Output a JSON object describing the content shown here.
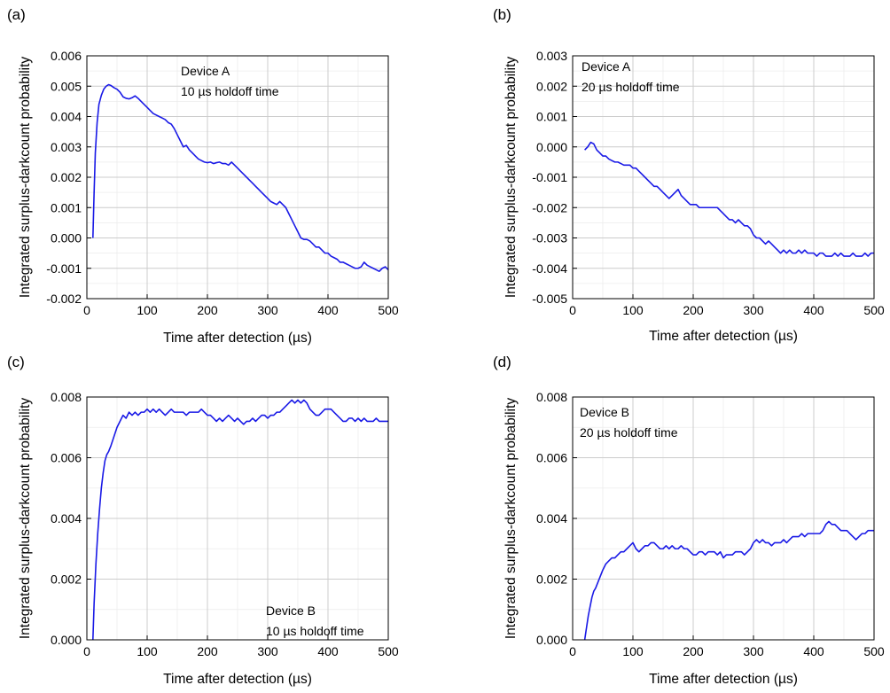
{
  "chart_data": [
    {
      "type": "line",
      "panel": "(a)",
      "xlabel": "Time after detection (µs)",
      "ylabel": "Integrated surplus-darkcount probability",
      "xlim": [
        0,
        500
      ],
      "ylim": [
        -0.002,
        0.006
      ],
      "x_ticks": [
        0,
        100,
        200,
        300,
        400,
        500
      ],
      "x_tick_labels": [
        "0",
        "100",
        "200",
        "300",
        "400",
        "500"
      ],
      "y_ticks": [
        -0.002,
        -0.001,
        0.0,
        0.001,
        0.002,
        0.003,
        0.004,
        0.005,
        0.006
      ],
      "y_tick_labels": [
        "-0.002",
        "-0.001",
        "0.000",
        "0.001",
        "0.002",
        "0.003",
        "0.004",
        "0.005",
        "0.006"
      ],
      "grid": true,
      "annotation_lines": [
        "Device A",
        "10 µs holdoff time"
      ],
      "annotation_pos": "top-center",
      "color": "#1a1ae6",
      "series": [
        {
          "x": [
            10,
            12,
            14,
            17,
            20,
            24,
            28,
            32,
            36,
            40,
            45,
            50,
            55,
            60,
            65,
            70,
            75,
            80,
            85,
            90,
            95,
            100,
            105,
            110,
            115,
            120,
            125,
            130,
            135,
            140,
            145,
            150,
            155,
            160,
            165,
            170,
            175,
            180,
            185,
            190,
            195,
            200,
            205,
            210,
            215,
            220,
            225,
            230,
            235,
            240,
            245,
            250,
            255,
            260,
            265,
            270,
            275,
            280,
            285,
            290,
            295,
            300,
            305,
            310,
            315,
            320,
            325,
            330,
            335,
            340,
            345,
            350,
            355,
            360,
            365,
            370,
            375,
            380,
            385,
            390,
            395,
            400,
            405,
            410,
            415,
            420,
            425,
            430,
            435,
            440,
            445,
            450,
            455,
            460,
            465,
            470,
            475,
            480,
            485,
            490,
            495,
            500
          ],
          "y": [
            0.0,
            0.0015,
            0.0028,
            0.0038,
            0.0044,
            0.0047,
            0.0049,
            0.005,
            0.00505,
            0.00502,
            0.00495,
            0.0049,
            0.0048,
            0.00465,
            0.0046,
            0.00458,
            0.00462,
            0.00468,
            0.0046,
            0.0045,
            0.0044,
            0.0043,
            0.0042,
            0.0041,
            0.00405,
            0.004,
            0.00395,
            0.0039,
            0.0038,
            0.00375,
            0.0036,
            0.0034,
            0.0032,
            0.003,
            0.00305,
            0.0029,
            0.0028,
            0.0027,
            0.0026,
            0.00255,
            0.0025,
            0.00248,
            0.0025,
            0.00245,
            0.00248,
            0.0025,
            0.00245,
            0.00245,
            0.0024,
            0.0025,
            0.0024,
            0.0023,
            0.0022,
            0.0021,
            0.002,
            0.0019,
            0.0018,
            0.0017,
            0.0016,
            0.0015,
            0.0014,
            0.0013,
            0.0012,
            0.00115,
            0.0011,
            0.0012,
            0.0011,
            0.001,
            0.0008,
            0.0006,
            0.0004,
            0.0002,
            0.0,
            -5e-05,
            -5e-05,
            -0.0001,
            -0.0002,
            -0.0003,
            -0.0003,
            -0.0004,
            -0.0005,
            -0.0005,
            -0.0006,
            -0.00065,
            -0.0007,
            -0.0008,
            -0.0008,
            -0.00085,
            -0.0009,
            -0.00095,
            -0.001,
            -0.001,
            -0.00095,
            -0.0008,
            -0.0009,
            -0.00095,
            -0.001,
            -0.00105,
            -0.0011,
            -0.001,
            -0.00095,
            -0.00105
          ]
        }
      ]
    },
    {
      "type": "line",
      "panel": "(b)",
      "xlabel": "Time after detection (µs)",
      "ylabel": "Integrated surplus-darkcount probability",
      "xlim": [
        0,
        500
      ],
      "ylim": [
        -0.005,
        0.003
      ],
      "x_ticks": [
        0,
        100,
        200,
        300,
        400,
        500
      ],
      "x_tick_labels": [
        "0",
        "100",
        "200",
        "300",
        "400",
        "500"
      ],
      "y_ticks": [
        -0.005,
        -0.004,
        -0.003,
        -0.002,
        -0.001,
        0.0,
        0.001,
        0.002,
        0.003
      ],
      "y_tick_labels": [
        "-0.005",
        "-0.004",
        "-0.003",
        "-0.002",
        "-0.001",
        "0.000",
        "0.001",
        "0.002",
        "0.003"
      ],
      "grid": true,
      "annotation_lines": [
        "Device A",
        "20 µs holdoff time"
      ],
      "annotation_pos": "top-left",
      "color": "#1a1ae6",
      "series": [
        {
          "x": [
            20,
            25,
            30,
            35,
            40,
            45,
            50,
            55,
            60,
            65,
            70,
            75,
            80,
            85,
            90,
            95,
            100,
            105,
            110,
            115,
            120,
            125,
            130,
            135,
            140,
            145,
            150,
            155,
            160,
            165,
            170,
            175,
            180,
            185,
            190,
            195,
            200,
            205,
            210,
            215,
            220,
            225,
            230,
            235,
            240,
            245,
            250,
            255,
            260,
            265,
            270,
            275,
            280,
            285,
            290,
            295,
            300,
            305,
            310,
            315,
            320,
            325,
            330,
            335,
            340,
            345,
            350,
            355,
            360,
            365,
            370,
            375,
            380,
            385,
            390,
            395,
            400,
            405,
            410,
            415,
            420,
            425,
            430,
            435,
            440,
            445,
            450,
            455,
            460,
            465,
            470,
            475,
            480,
            485,
            490,
            495,
            500
          ],
          "y": [
            -0.0001,
            0.0,
            0.00015,
            0.0001,
            -0.0001,
            -0.0002,
            -0.0003,
            -0.0003,
            -0.0004,
            -0.00045,
            -0.0005,
            -0.0005,
            -0.00055,
            -0.0006,
            -0.0006,
            -0.0006,
            -0.0007,
            -0.0007,
            -0.0008,
            -0.0009,
            -0.001,
            -0.0011,
            -0.0012,
            -0.0013,
            -0.0013,
            -0.0014,
            -0.0015,
            -0.0016,
            -0.0017,
            -0.0016,
            -0.0015,
            -0.0014,
            -0.0016,
            -0.0017,
            -0.0018,
            -0.0019,
            -0.0019,
            -0.0019,
            -0.002,
            -0.002,
            -0.002,
            -0.002,
            -0.002,
            -0.002,
            -0.002,
            -0.0021,
            -0.0022,
            -0.0023,
            -0.0024,
            -0.0024,
            -0.0025,
            -0.0024,
            -0.0025,
            -0.0026,
            -0.0026,
            -0.0027,
            -0.0029,
            -0.003,
            -0.003,
            -0.0031,
            -0.0032,
            -0.0031,
            -0.0032,
            -0.0033,
            -0.0034,
            -0.0035,
            -0.0034,
            -0.0035,
            -0.0034,
            -0.0035,
            -0.0035,
            -0.0034,
            -0.0035,
            -0.0034,
            -0.0035,
            -0.0035,
            -0.0035,
            -0.0036,
            -0.0035,
            -0.0035,
            -0.0036,
            -0.0036,
            -0.0036,
            -0.0035,
            -0.0036,
            -0.0035,
            -0.0036,
            -0.0036,
            -0.0036,
            -0.0035,
            -0.0036,
            -0.0036,
            -0.0036,
            -0.0035,
            -0.0036,
            -0.0035,
            -0.0035
          ]
        }
      ]
    },
    {
      "type": "line",
      "panel": "(c)",
      "xlabel": "Time after detection (µs)",
      "ylabel": "Integrated surplus-darkcount probability",
      "xlim": [
        0,
        500
      ],
      "ylim": [
        0,
        0.008
      ],
      "x_ticks": [
        0,
        100,
        200,
        300,
        400,
        500
      ],
      "x_tick_labels": [
        "0",
        "100",
        "200",
        "300",
        "400",
        "500"
      ],
      "y_ticks": [
        0.0,
        0.002,
        0.004,
        0.006,
        0.008
      ],
      "y_tick_labels": [
        "0.000",
        "0.002",
        "0.004",
        "0.006",
        "0.008"
      ],
      "grid": true,
      "annotation_lines": [
        "Device B",
        "10 µs holdoff time"
      ],
      "annotation_pos": "bottom-right",
      "color": "#1a1ae6",
      "series": [
        {
          "x": [
            10,
            12,
            15,
            18,
            21,
            24,
            27,
            30,
            33,
            36,
            40,
            45,
            50,
            55,
            60,
            65,
            70,
            75,
            80,
            85,
            90,
            95,
            100,
            105,
            110,
            115,
            120,
            125,
            130,
            135,
            140,
            145,
            150,
            155,
            160,
            165,
            170,
            175,
            180,
            185,
            190,
            195,
            200,
            205,
            210,
            215,
            220,
            225,
            230,
            235,
            240,
            245,
            250,
            255,
            260,
            265,
            270,
            275,
            280,
            285,
            290,
            295,
            300,
            305,
            310,
            315,
            320,
            325,
            330,
            335,
            340,
            345,
            350,
            355,
            360,
            365,
            370,
            375,
            380,
            385,
            390,
            395,
            400,
            405,
            410,
            415,
            420,
            425,
            430,
            435,
            440,
            445,
            450,
            455,
            460,
            465,
            470,
            475,
            480,
            485,
            490,
            495,
            500
          ],
          "y": [
            0.0,
            0.0012,
            0.0025,
            0.0035,
            0.0043,
            0.005,
            0.0055,
            0.0059,
            0.0061,
            0.0062,
            0.0064,
            0.0067,
            0.007,
            0.0072,
            0.0074,
            0.0073,
            0.0075,
            0.0074,
            0.0075,
            0.0074,
            0.0075,
            0.0075,
            0.0076,
            0.0075,
            0.0076,
            0.0075,
            0.0076,
            0.0075,
            0.0074,
            0.0075,
            0.0076,
            0.0075,
            0.0075,
            0.0075,
            0.0075,
            0.0074,
            0.0075,
            0.0075,
            0.0075,
            0.0075,
            0.0076,
            0.0075,
            0.0074,
            0.0074,
            0.0073,
            0.0072,
            0.0073,
            0.0072,
            0.0073,
            0.0074,
            0.0073,
            0.0072,
            0.0073,
            0.0072,
            0.0071,
            0.0072,
            0.0072,
            0.0073,
            0.0072,
            0.0073,
            0.0074,
            0.0074,
            0.0073,
            0.0074,
            0.0074,
            0.0075,
            0.0075,
            0.0076,
            0.0077,
            0.0078,
            0.0079,
            0.0078,
            0.0079,
            0.0078,
            0.0079,
            0.0078,
            0.0076,
            0.0075,
            0.0074,
            0.0074,
            0.0075,
            0.0076,
            0.0076,
            0.0076,
            0.0075,
            0.0074,
            0.0073,
            0.0072,
            0.0072,
            0.0073,
            0.0073,
            0.0072,
            0.0073,
            0.0072,
            0.0073,
            0.0072,
            0.0072,
            0.0072,
            0.0073,
            0.0072,
            0.0072,
            0.0072,
            0.0072
          ]
        }
      ]
    },
    {
      "type": "line",
      "panel": "(d)",
      "xlabel": "Time after detection (µs)",
      "ylabel": "Integrated surplus-darkcount probability",
      "xlim": [
        0,
        500
      ],
      "ylim": [
        0,
        0.008
      ],
      "x_ticks": [
        0,
        100,
        200,
        300,
        400,
        500
      ],
      "x_tick_labels": [
        "0",
        "100",
        "200",
        "300",
        "400",
        "500"
      ],
      "y_ticks": [
        0.0,
        0.002,
        0.004,
        0.006,
        0.008
      ],
      "y_tick_labels": [
        "0.000",
        "0.002",
        "0.004",
        "0.006",
        "0.008"
      ],
      "grid": true,
      "annotation_lines": [
        "Device B",
        "20 µs holdoff time"
      ],
      "annotation_pos": "top-left",
      "color": "#1a1ae6",
      "series": [
        {
          "x": [
            20,
            23,
            26,
            29,
            32,
            35,
            38,
            42,
            46,
            50,
            55,
            60,
            65,
            70,
            75,
            80,
            85,
            90,
            95,
            100,
            105,
            110,
            115,
            120,
            125,
            130,
            135,
            140,
            145,
            150,
            155,
            160,
            165,
            170,
            175,
            180,
            185,
            190,
            195,
            200,
            205,
            210,
            215,
            220,
            225,
            230,
            235,
            240,
            245,
            250,
            255,
            260,
            265,
            270,
            275,
            280,
            285,
            290,
            295,
            300,
            305,
            310,
            315,
            320,
            325,
            330,
            335,
            340,
            345,
            350,
            355,
            360,
            365,
            370,
            375,
            380,
            385,
            390,
            395,
            400,
            405,
            410,
            415,
            420,
            425,
            430,
            435,
            440,
            445,
            450,
            455,
            460,
            465,
            470,
            475,
            480,
            485,
            490,
            495,
            500
          ],
          "y": [
            0.0,
            0.0004,
            0.0008,
            0.0011,
            0.0014,
            0.0016,
            0.0017,
            0.0019,
            0.0021,
            0.0023,
            0.0025,
            0.0026,
            0.0027,
            0.0027,
            0.0028,
            0.0029,
            0.0029,
            0.003,
            0.0031,
            0.0032,
            0.003,
            0.0029,
            0.003,
            0.0031,
            0.0031,
            0.0032,
            0.0032,
            0.0031,
            0.003,
            0.003,
            0.0031,
            0.003,
            0.0031,
            0.003,
            0.003,
            0.0031,
            0.003,
            0.003,
            0.0029,
            0.0028,
            0.0028,
            0.0029,
            0.0029,
            0.0028,
            0.0029,
            0.0029,
            0.0029,
            0.0028,
            0.0029,
            0.0027,
            0.0028,
            0.0028,
            0.0028,
            0.0029,
            0.0029,
            0.0029,
            0.0028,
            0.0029,
            0.003,
            0.0032,
            0.0033,
            0.0032,
            0.0033,
            0.0032,
            0.0032,
            0.0031,
            0.0032,
            0.0032,
            0.0032,
            0.0033,
            0.0032,
            0.0033,
            0.0034,
            0.0034,
            0.0034,
            0.0035,
            0.0034,
            0.0035,
            0.0035,
            0.0035,
            0.0035,
            0.0035,
            0.0036,
            0.0038,
            0.0039,
            0.0038,
            0.0038,
            0.0037,
            0.0036,
            0.0036,
            0.0036,
            0.0035,
            0.0034,
            0.0033,
            0.0034,
            0.0035,
            0.0035,
            0.0036,
            0.0036,
            0.0036
          ]
        }
      ]
    }
  ]
}
